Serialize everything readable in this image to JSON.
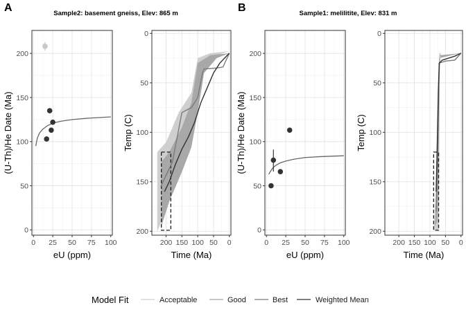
{
  "panels": [
    {
      "letter": "A",
      "title": "Sample2: basement gneiss, Elev: 865 m"
    },
    {
      "letter": "B",
      "title": "Sample1: melilitite, Elev: 831 m"
    }
  ],
  "legend": {
    "title": "Model Fit",
    "entries": [
      {
        "label": "Acceptable",
        "color": "#cfcfcf"
      },
      {
        "label": "Good",
        "color": "#a8a8a8"
      },
      {
        "label": "Best",
        "color": "#7a7a7a"
      },
      {
        "label": "Weighted Mean",
        "color": "#333333"
      }
    ]
  },
  "colors": {
    "point_dark": "#333333",
    "point_light": "#c7c7c7",
    "grid": "#e3e3e3",
    "frame": "#333333"
  },
  "chart_data": [
    {
      "type": "scatter",
      "panel": "A",
      "xlabel": "eU (ppm)",
      "ylabel": "(U-Th)/He Date (Ma)",
      "xlim": [
        -2,
        102
      ],
      "ylim": [
        -6,
        226
      ],
      "xticks": [
        0,
        25,
        50,
        75,
        100
      ],
      "yticks": [
        0,
        50,
        100,
        150,
        200
      ],
      "points": [
        {
          "x": 15,
          "y": 208,
          "err": 5,
          "style": "light"
        },
        {
          "x": 21,
          "y": 135,
          "style": "dark"
        },
        {
          "x": 25,
          "y": 122,
          "style": "dark"
        },
        {
          "x": 23,
          "y": 113,
          "style": "dark"
        },
        {
          "x": 17,
          "y": 103,
          "style": "dark"
        }
      ],
      "model_curve": {
        "x": [
          3,
          5,
          8,
          12,
          18,
          25,
          35,
          50,
          70,
          100
        ],
        "y": [
          95,
          104,
          110,
          114,
          118,
          121,
          123,
          125,
          126.5,
          128
        ]
      }
    },
    {
      "type": "line",
      "panel": "A",
      "xlabel": "Time (Ma)",
      "ylabel": "Temp (C)",
      "x_reversed": true,
      "y_reversed": true,
      "xlim": [
        245,
        -5
      ],
      "ylim": [
        -3,
        204
      ],
      "xticks": [
        200,
        150,
        100,
        50,
        0
      ],
      "yticks": [
        0,
        50,
        100,
        150,
        200
      ],
      "constraint_box": {
        "x": [
          185,
          215
        ],
        "y": [
          120,
          199
        ]
      },
      "envelopes": [
        {
          "fit": "Acceptable",
          "upper": [
            [
              228,
              200
            ],
            [
              200,
              180
            ],
            [
              160,
              140
            ],
            [
              120,
              95
            ],
            [
              100,
              70
            ],
            [
              85,
              40
            ],
            [
              40,
              22
            ],
            [
              0,
              18
            ]
          ],
          "lower": [
            [
              228,
              120
            ],
            [
              200,
              110
            ],
            [
              160,
              80
            ],
            [
              120,
              60
            ],
            [
              100,
              25
            ],
            [
              60,
              20
            ],
            [
              0,
              18
            ]
          ]
        },
        {
          "fit": "Good",
          "upper": [
            [
              215,
              195
            ],
            [
              190,
              170
            ],
            [
              150,
              140
            ],
            [
              120,
              115
            ],
            [
              100,
              80
            ],
            [
              80,
              40
            ],
            [
              40,
              25
            ],
            [
              0,
              20
            ]
          ],
          "lower": [
            [
              215,
              130
            ],
            [
              190,
              120
            ],
            [
              150,
              95
            ],
            [
              120,
              70
            ],
            [
              100,
              30
            ],
            [
              60,
              22
            ],
            [
              0,
              20
            ]
          ]
        }
      ],
      "series": [
        {
          "name": "Best",
          "x": [
            217,
            180,
            150,
            120,
            100,
            85,
            80,
            40,
            20,
            0
          ],
          "y": [
            155,
            130,
            80,
            75,
            65,
            40,
            36,
            35,
            34,
            20
          ]
        },
        {
          "name": "Weighted Mean",
          "x": [
            205,
            190,
            170,
            150,
            130,
            110,
            100,
            90,
            70,
            50,
            30,
            15,
            0
          ],
          "y": [
            160,
            150,
            132,
            117,
            105,
            90,
            80,
            70,
            55,
            40,
            30,
            25,
            20
          ]
        }
      ]
    },
    {
      "type": "scatter",
      "panel": "B",
      "xlabel": "eU (ppm)",
      "ylabel": "(U-Th)/He Date (Ma)",
      "xlim": [
        -2,
        102
      ],
      "ylim": [
        -6,
        226
      ],
      "xticks": [
        0,
        25,
        50,
        75,
        100
      ],
      "yticks": [
        0,
        50,
        100,
        150,
        200
      ],
      "points": [
        {
          "x": 30,
          "y": 113,
          "style": "dark"
        },
        {
          "x": 9,
          "y": 79,
          "err_low": 66,
          "err_high": 91,
          "style": "dark"
        },
        {
          "x": 18,
          "y": 66,
          "style": "dark"
        },
        {
          "x": 6,
          "y": 50,
          "style": "dark"
        }
      ],
      "model_curve": {
        "x": [
          3,
          5,
          8,
          12,
          18,
          25,
          35,
          50,
          70,
          100
        ],
        "y": [
          63,
          66,
          70,
          73,
          76,
          78,
          80,
          82,
          83,
          84
        ]
      }
    },
    {
      "type": "line",
      "panel": "B",
      "xlabel": "Time (Ma)",
      "ylabel": "Temp (C)",
      "x_reversed": true,
      "y_reversed": true,
      "xlim": [
        245,
        -5
      ],
      "ylim": [
        -3,
        204
      ],
      "xticks": [
        200,
        150,
        100,
        50,
        0
      ],
      "yticks": [
        0,
        50,
        100,
        150,
        200
      ],
      "constraint_box": {
        "x": [
          72,
          88
        ],
        "y": [
          120,
          199
        ]
      },
      "envelopes": [
        {
          "fit": "Acceptable",
          "upper": [
            [
              88,
              199
            ],
            [
              80,
              150
            ],
            [
              75,
              60
            ],
            [
              70,
              20
            ],
            [
              0,
              18
            ]
          ],
          "lower": [
            [
              72,
              199
            ],
            [
              70,
              140
            ],
            [
              68,
              40
            ],
            [
              65,
              20
            ],
            [
              0,
              18
            ]
          ]
        },
        {
          "fit": "Good",
          "upper": [
            [
              84,
              195
            ],
            [
              78,
              150
            ],
            [
              74,
              70
            ],
            [
              70,
              25
            ],
            [
              0,
              20
            ]
          ],
          "lower": [
            [
              76,
              190
            ],
            [
              72,
              140
            ],
            [
              70,
              50
            ],
            [
              67,
              22
            ],
            [
              0,
              20
            ]
          ]
        }
      ],
      "series": [
        {
          "name": "Best",
          "x": [
            80,
            75,
            70,
            50,
            20,
            0
          ],
          "y": [
            180,
            120,
            30,
            28,
            27,
            20
          ]
        },
        {
          "name": "Weighted Mean",
          "x": [
            80,
            77,
            73,
            70,
            60,
            40,
            20,
            0
          ],
          "y": [
            160,
            120,
            60,
            30,
            27,
            25,
            23,
            20
          ]
        }
      ]
    }
  ]
}
